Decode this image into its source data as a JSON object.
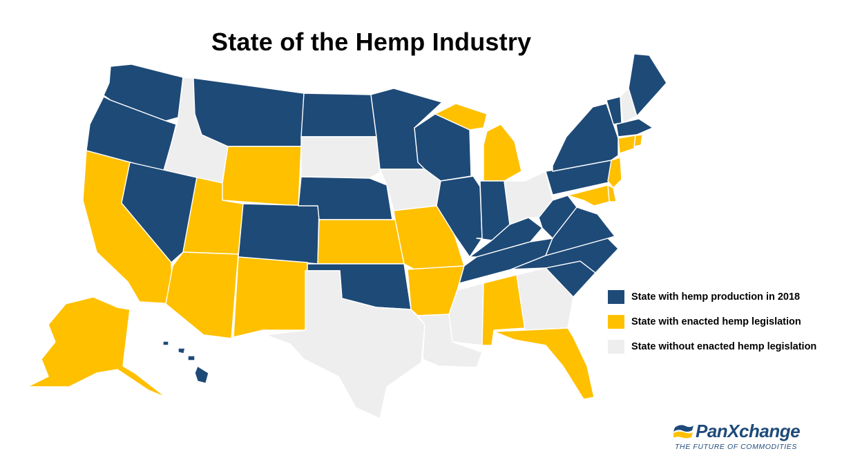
{
  "title": "State of the Hemp Industry",
  "colors": {
    "production": "#1e4a77",
    "enacted": "#ffc000",
    "none": "#eeeeee",
    "border": "#ffffff"
  },
  "legend": [
    {
      "key": "production",
      "label": "State with hemp production in 2018"
    },
    {
      "key": "enacted",
      "label": "State with enacted hemp legislation"
    },
    {
      "key": "none",
      "label": "State without enacted hemp legislation"
    }
  ],
  "states": {
    "WA": "production",
    "OR": "production",
    "CA": "enacted",
    "ID": "none",
    "NV": "production",
    "MT": "production",
    "WY": "enacted",
    "UT": "enacted",
    "AZ": "enacted",
    "CO": "production",
    "NM": "enacted",
    "ND": "production",
    "SD": "none",
    "NE": "production",
    "KS": "enacted",
    "OK": "production",
    "TX": "none",
    "MN": "production",
    "IA": "none",
    "MO": "enacted",
    "AR": "enacted",
    "LA": "none",
    "WI": "production",
    "IL": "production",
    "MS": "none",
    "MI": "enacted",
    "IN": "production",
    "KY": "production",
    "TN": "production",
    "AL": "enacted",
    "OH": "none",
    "GA": "none",
    "FL": "enacted",
    "SC": "production",
    "NC": "production",
    "VA": "production",
    "WV": "production",
    "PA": "production",
    "NY": "production",
    "VT": "production",
    "NH": "none",
    "ME": "production",
    "MA": "production",
    "CT": "enacted",
    "RI": "enacted",
    "NJ": "enacted",
    "DE": "enacted",
    "MD": "enacted",
    "AK": "enacted",
    "HI": "production"
  },
  "logo": {
    "name": "PanXchange",
    "tagline": "THE FUTURE OF COMMODITIES"
  }
}
